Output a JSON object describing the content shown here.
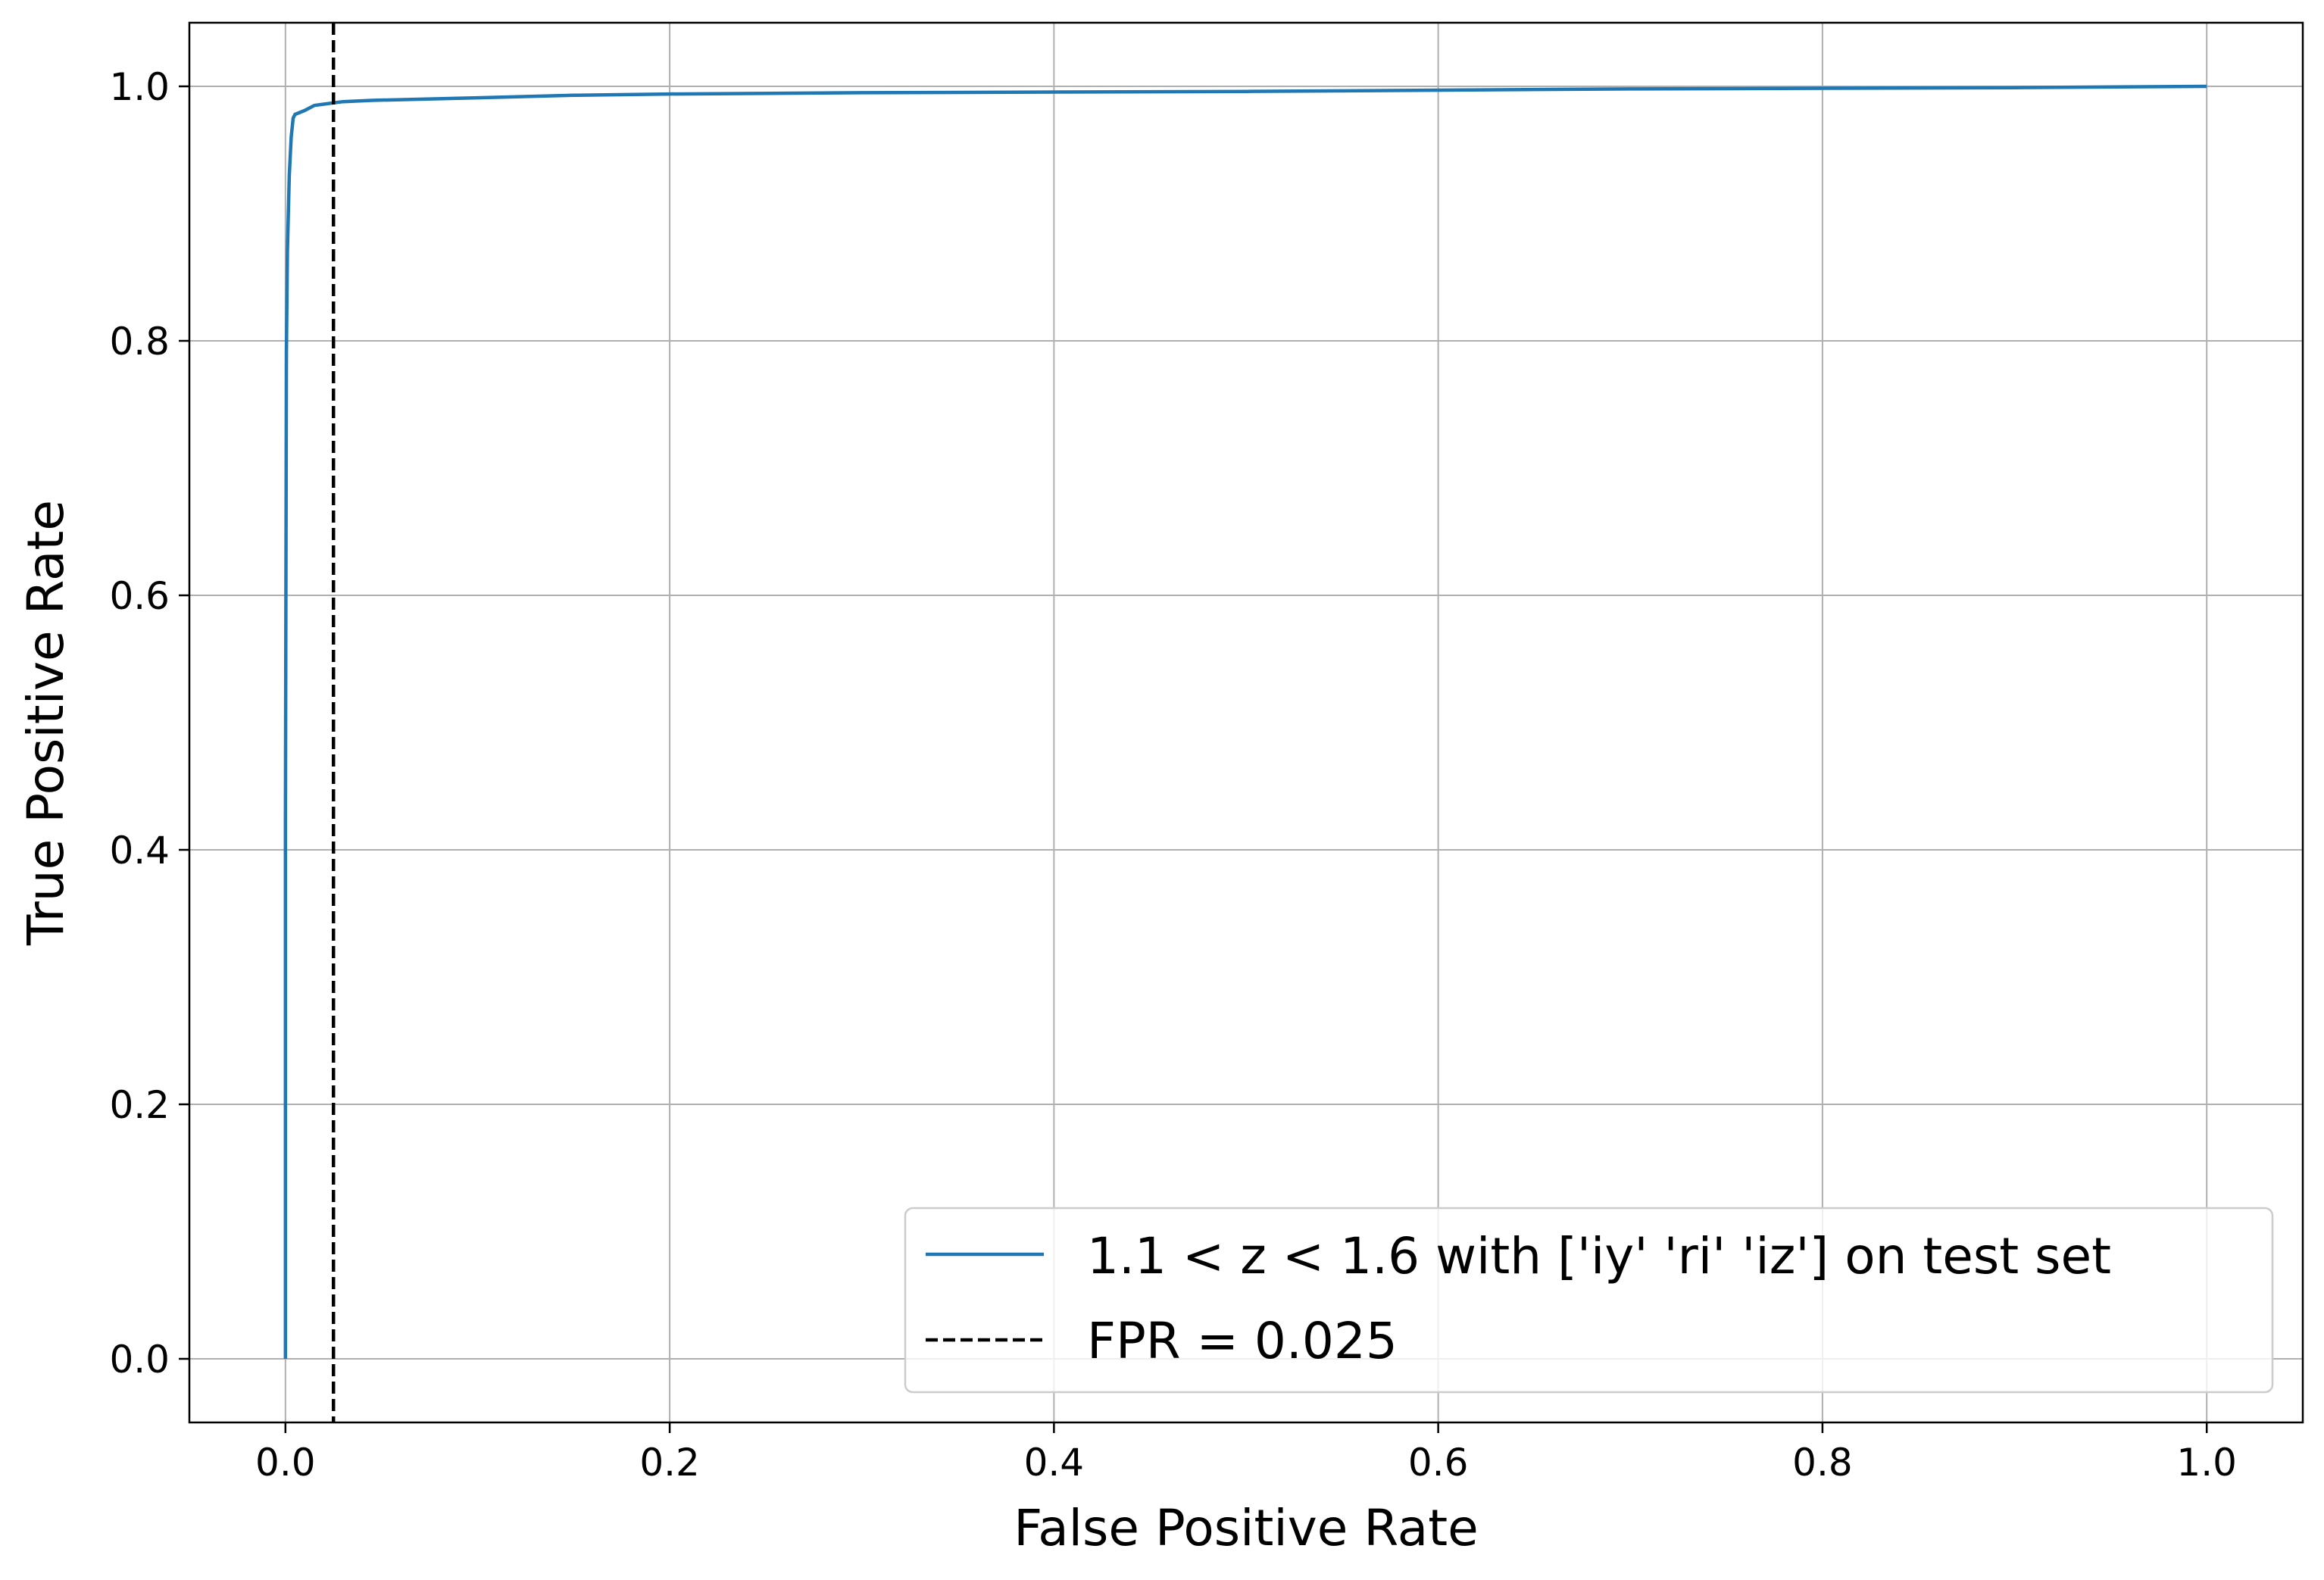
{
  "chart_data": {
    "type": "line",
    "title": "",
    "xlabel": "False Positive Rate",
    "ylabel": "True Positive Rate",
    "xlim": [
      -0.05,
      1.05
    ],
    "ylim": [
      -0.05,
      1.05
    ],
    "xticks": [
      0.0,
      0.2,
      0.4,
      0.6,
      0.8,
      1.0
    ],
    "xtick_labels": [
      "0.0",
      "0.2",
      "0.4",
      "0.6",
      "0.8",
      "1.0"
    ],
    "yticks": [
      0.0,
      0.2,
      0.4,
      0.6,
      0.8,
      1.0
    ],
    "ytick_labels": [
      "0.0",
      "0.2",
      "0.4",
      "0.6",
      "0.8",
      "1.0"
    ],
    "grid": true,
    "legend_position": "lower-right",
    "series": [
      {
        "name": "1.1 < z < 1.6 with ['iy' 'ri' 'iz'] on test set",
        "color": "#1f77b4",
        "style": "solid",
        "x": [
          0.0,
          0.0,
          0.0005,
          0.001,
          0.002,
          0.003,
          0.004,
          0.005,
          0.01,
          0.015,
          0.02,
          0.025,
          0.03,
          0.045,
          0.1,
          0.15,
          0.2,
          0.3,
          0.5,
          0.7,
          0.9,
          1.0
        ],
        "y": [
          0.0,
          0.42,
          0.79,
          0.87,
          0.93,
          0.96,
          0.975,
          0.978,
          0.981,
          0.985,
          0.986,
          0.987,
          0.988,
          0.989,
          0.991,
          0.993,
          0.994,
          0.995,
          0.996,
          0.998,
          0.999,
          1.0
        ]
      },
      {
        "name": "FPR = 0.025",
        "color": "#000000",
        "style": "dashed",
        "vline_x": 0.025
      }
    ]
  }
}
